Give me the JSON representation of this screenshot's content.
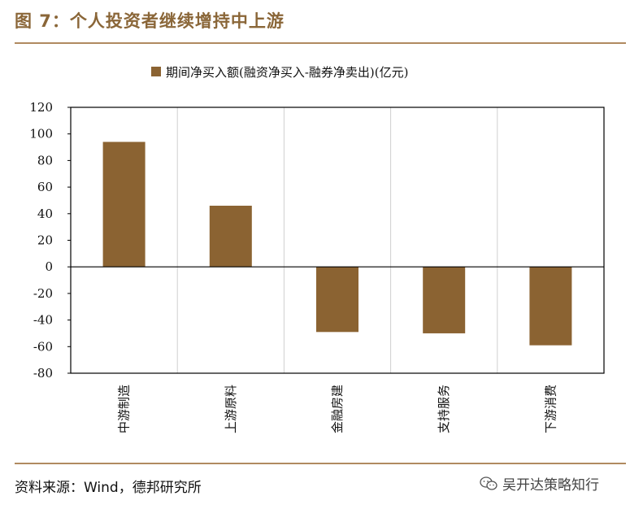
{
  "header": {
    "title": "图 7：个人投资者继续增持中上游"
  },
  "footer": {
    "source": "资料来源：Wind，德邦研究所",
    "watermark": "吴开达策略知行",
    "watermark_icon": "wechat-icon"
  },
  "colors": {
    "bar": "#8b6332",
    "rule": "#b08a60",
    "title": "#8a6638"
  },
  "chart_data": {
    "type": "bar",
    "categories": [
      "中游制造",
      "上游原料",
      "金融房建",
      "支持服务",
      "下游消费"
    ],
    "series": [
      {
        "name": "期间净买入额(融资净买入-融券净卖出)(亿元)",
        "values": [
          94,
          46,
          -49,
          -50,
          -59
        ]
      }
    ],
    "ylim": [
      -80,
      120
    ],
    "yticks": [
      120,
      100,
      80,
      60,
      40,
      20,
      0,
      -20,
      -40,
      -60,
      -80
    ],
    "grid": true,
    "legend_position": "top"
  }
}
